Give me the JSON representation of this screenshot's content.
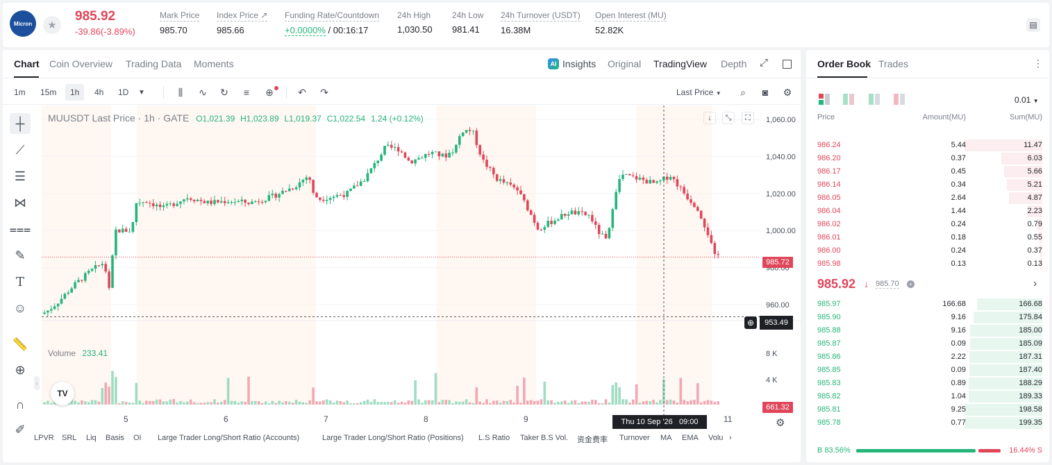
{
  "header": {
    "logo_text": "Micron",
    "price": "985.92",
    "change": "-39.86(-3.89%)",
    "stats": [
      {
        "label": "Mark Price",
        "value": "985.70"
      },
      {
        "label": "Index Price ↗",
        "value": "985.66"
      },
      {
        "label": "Funding Rate/Countdown",
        "value_a": "+0.0000%",
        "value_b": " / 00:16:17"
      },
      {
        "label": "24h High",
        "value": "1,030.50"
      },
      {
        "label": "24h Low",
        "value": "981.41"
      },
      {
        "label": "24h Turnover (USDT)",
        "value": "16.38M"
      },
      {
        "label": "Open Interest (MU)",
        "value": "52.82K"
      }
    ]
  },
  "chart_tabs": [
    "Chart",
    "Coin Overview",
    "Trading Data",
    "Moments"
  ],
  "view_tabs": {
    "insights": "Insights",
    "original": "Original",
    "tradingview": "TradingView",
    "depth": "Depth"
  },
  "timeframes": [
    "1m",
    "15m",
    "1h",
    "4h",
    "1D"
  ],
  "last_price_select": "Last Price",
  "chart": {
    "legend_symbol": "MUUSDT Last Price · 1h · GATE",
    "ohlc": {
      "o": "O1,021.39",
      "h": "H1,023.89",
      "l": "L1,019.37",
      "c": "C1,022.54",
      "chg": "1.24 (+0.12%)"
    },
    "volume_label": "Volume",
    "volume_value": "233.41",
    "price_ticks": [
      "1,060.00",
      "1,040.00",
      "1,020.00",
      "1,000.00",
      "980.00",
      "960.00"
    ],
    "vol_ticks": [
      "8 K",
      "4 K"
    ],
    "date_ticks": [
      "5",
      "6",
      "7",
      "8",
      "9",
      "11"
    ],
    "last_price_tag": "985.72",
    "crosshair_price": "953.49",
    "crosshair_time": "Thu 10 Sep '26   09:00",
    "vol_tag": "661.32",
    "tv_logo": "TV"
  },
  "indicators": [
    "LPVR",
    "SRL",
    "Liq",
    "Basis",
    "OI",
    "Large Trader Long/Short Ratio (Accounts)",
    "Large Trader Long/Short Ratio (Positions)",
    "L.S Ratio",
    "Taker B.S Vol.",
    "资金费率",
    "Turnover",
    "MA",
    "EMA",
    "Volu"
  ],
  "orderbook": {
    "tabs": [
      "Order Book",
      "Trades"
    ],
    "precision": "0.01",
    "headers": {
      "price": "Price",
      "amount": "Amount(MU)",
      "sum": "Sum(MU)"
    },
    "asks": [
      {
        "p": "986.24",
        "a": "5.44",
        "s": "11.47"
      },
      {
        "p": "986.20",
        "a": "0.37",
        "s": "6.03"
      },
      {
        "p": "986.17",
        "a": "0.45",
        "s": "5.66"
      },
      {
        "p": "986.14",
        "a": "0.34",
        "s": "5.21"
      },
      {
        "p": "986.05",
        "a": "2.64",
        "s": "4.87"
      },
      {
        "p": "986.04",
        "a": "1.44",
        "s": "2.23"
      },
      {
        "p": "986.02",
        "a": "0.24",
        "s": "0.79"
      },
      {
        "p": "986.01",
        "a": "0.18",
        "s": "0.55"
      },
      {
        "p": "986.00",
        "a": "0.24",
        "s": "0.37"
      },
      {
        "p": "985.98",
        "a": "0.13",
        "s": "0.13"
      }
    ],
    "mid_price": "985.92",
    "mid_mark": "985.70",
    "bids": [
      {
        "p": "985.97",
        "a": "166.68",
        "s": "166.68"
      },
      {
        "p": "985.90",
        "a": "9.16",
        "s": "175.84"
      },
      {
        "p": "985.88",
        "a": "9.16",
        "s": "185.00"
      },
      {
        "p": "985.87",
        "a": "0.09",
        "s": "185.09"
      },
      {
        "p": "985.86",
        "a": "2.22",
        "s": "187.31"
      },
      {
        "p": "985.85",
        "a": "0.09",
        "s": "187.40"
      },
      {
        "p": "985.83",
        "a": "0.89",
        "s": "188.29"
      },
      {
        "p": "985.82",
        "a": "1.04",
        "s": "189.33"
      },
      {
        "p": "985.81",
        "a": "9.25",
        "s": "198.58"
      },
      {
        "p": "985.78",
        "a": "0.77",
        "s": "199.35"
      }
    ],
    "buy_ratio": "B 83.56%",
    "sell_ratio": "16.44% S",
    "buy_frac": 0.8356
  },
  "colors": {
    "up": "#24b57a",
    "down": "#e0465a"
  }
}
